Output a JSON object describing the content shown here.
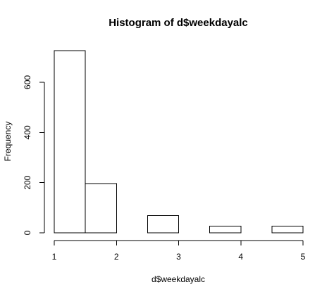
{
  "chart_data": {
    "type": "bar",
    "title": "Histogram of d$weekdayalc",
    "xlabel": "d$weekdayalc",
    "ylabel": "Frequency",
    "bins": [
      {
        "x0": 1.0,
        "x1": 1.5,
        "count": 726
      },
      {
        "x0": 1.5,
        "x1": 2.0,
        "count": 196
      },
      {
        "x0": 2.0,
        "x1": 2.5,
        "count": 0
      },
      {
        "x0": 2.5,
        "x1": 3.0,
        "count": 69
      },
      {
        "x0": 3.0,
        "x1": 3.5,
        "count": 0
      },
      {
        "x0": 3.5,
        "x1": 4.0,
        "count": 26
      },
      {
        "x0": 4.0,
        "x1": 4.5,
        "count": 0
      },
      {
        "x0": 4.5,
        "x1": 5.0,
        "count": 27
      }
    ],
    "xlim": [
      1,
      5
    ],
    "ylim": [
      0,
      726
    ],
    "xticks": [
      1,
      2,
      3,
      4,
      5
    ],
    "yticks": [
      0,
      200,
      400,
      600
    ],
    "grid": false,
    "legend": "none"
  }
}
